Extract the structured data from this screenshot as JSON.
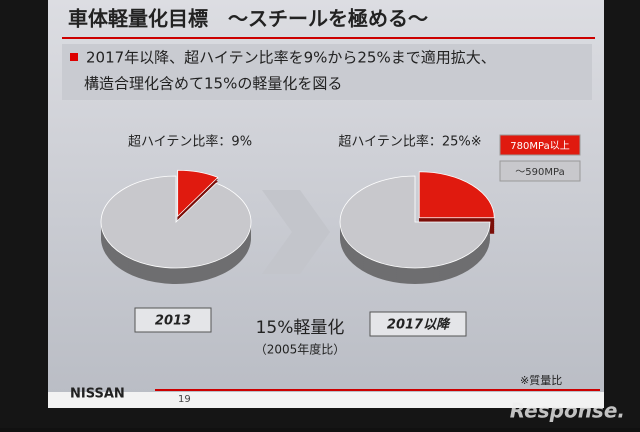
{
  "slide": {
    "title": "車体軽量化目標　～スチールを極める～",
    "bullet": [
      "2017年以降、超ハイテン比率を9%から25%まで適用拡大、",
      "構造合理化含めて15%の軽量化を図る"
    ],
    "label_left": "2013",
    "label_right": "2017以降",
    "center_main": "15%軽量化",
    "center_sub": "（2005年度比）",
    "footnote": "※質量比",
    "brand": "NISSAN",
    "page": "19",
    "watermark": "Response."
  },
  "chart_data": [
    {
      "type": "pie",
      "title": "超ハイテン比率：9%",
      "categories": [
        "780MPa以上",
        "～590MPa"
      ],
      "values": [
        9,
        91
      ],
      "colors": [
        "#e01a0f",
        "#c8c8cc"
      ]
    },
    {
      "type": "pie",
      "title": "超ハイテン比率：25%※",
      "categories": [
        "780MPa以上",
        "～590MPa"
      ],
      "values": [
        25,
        75
      ],
      "colors": [
        "#e01a0f",
        "#c8c8cc"
      ],
      "legend": "right"
    }
  ]
}
